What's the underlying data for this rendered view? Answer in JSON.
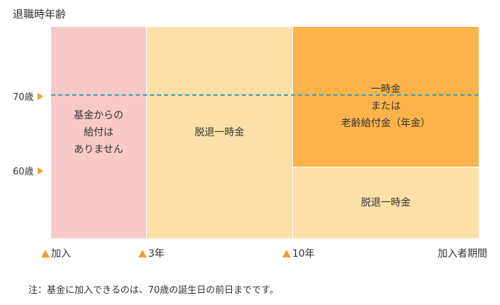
{
  "y_axis": {
    "title": "退職時年齢",
    "labels": [
      "70歳",
      "60歳"
    ]
  },
  "blocks": {
    "pink": {
      "lines": [
        "基金からの",
        "給付は",
        "ありません"
      ]
    },
    "cream_left": {
      "text": "脱退一時金"
    },
    "orange": {
      "lines": [
        "一時金",
        "または",
        "老齢給付金（年金）"
      ]
    },
    "cream_right": {
      "text": "脱退一時金"
    }
  },
  "x_axis": {
    "labels": [
      "加入",
      "3年",
      "10年"
    ],
    "title": "加入者期間"
  },
  "note": "注：基金に加入できるのは、70歳の誕生日の前日までです。",
  "colors": {
    "pink": "#f7c9c8",
    "cream": "#fde0a8",
    "orange": "#fbb44a",
    "dash": "#3d9fb5",
    "marker": "#f0a030"
  }
}
